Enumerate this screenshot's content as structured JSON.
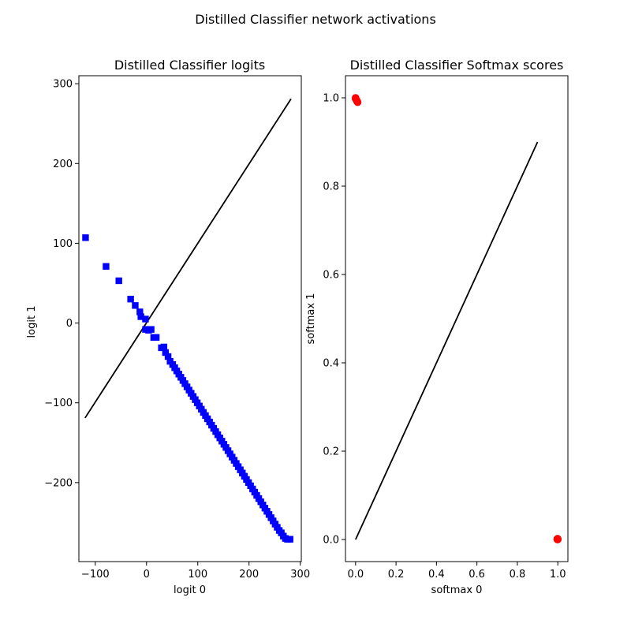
{
  "figure": {
    "suptitle": "Distilled Classifier network activations"
  },
  "chart_data": [
    {
      "type": "scatter",
      "title": "Distilled Classifier logits",
      "xlabel": "logit 0",
      "ylabel": "logit 1",
      "xlim": [
        -132,
        302
      ],
      "ylim": [
        -299,
        310
      ],
      "xticks": [
        -100,
        0,
        100,
        200,
        300
      ],
      "yticks": [
        -200,
        -100,
        0,
        100,
        200,
        300
      ],
      "xtick_labels": [
        "−100",
        "0",
        "100",
        "200",
        "300"
      ],
      "ytick_labels": [
        "−200",
        "−100",
        "0",
        "100",
        "200",
        "300"
      ],
      "reference_line": {
        "x": [
          -120,
          282
        ],
        "y": [
          -119,
          281
        ],
        "color": "#000000"
      },
      "series": [
        {
          "marker": "square",
          "color": "#0000ff",
          "points": [
            [
              -119,
              107
            ],
            [
              -79,
              71
            ],
            [
              -54,
              53
            ],
            [
              -31,
              30
            ],
            [
              -22,
              22
            ],
            [
              -13,
              14
            ],
            [
              -11,
              8
            ],
            [
              -2,
              5
            ],
            [
              -2,
              -8
            ],
            [
              4,
              -9
            ],
            [
              9,
              -8
            ],
            [
              14,
              -18
            ],
            [
              19,
              -18
            ],
            [
              29,
              -31
            ],
            [
              34,
              -30
            ],
            [
              37,
              -37
            ],
            [
              42,
              -42
            ],
            [
              46,
              -48
            ],
            [
              51,
              -52
            ],
            [
              55,
              -56
            ],
            [
              59,
              -60
            ],
            [
              63,
              -64
            ],
            [
              67,
              -68
            ],
            [
              71,
              -72
            ],
            [
              75,
              -76
            ],
            [
              79,
              -80
            ],
            [
              83,
              -84
            ],
            [
              87,
              -88
            ],
            [
              91,
              -92
            ],
            [
              95,
              -96
            ],
            [
              99,
              -100
            ],
            [
              103,
              -104
            ],
            [
              107,
              -108
            ],
            [
              111,
              -112
            ],
            [
              115,
              -116
            ],
            [
              119,
              -120
            ],
            [
              123,
              -124
            ],
            [
              127,
              -128
            ],
            [
              131,
              -132
            ],
            [
              135,
              -136
            ],
            [
              139,
              -140
            ],
            [
              143,
              -144
            ],
            [
              147,
              -148
            ],
            [
              151,
              -152
            ],
            [
              155,
              -156
            ],
            [
              159,
              -160
            ],
            [
              163,
              -164
            ],
            [
              167,
              -168
            ],
            [
              171,
              -172
            ],
            [
              175,
              -176
            ],
            [
              179,
              -180
            ],
            [
              183,
              -184
            ],
            [
              187,
              -188
            ],
            [
              191,
              -192
            ],
            [
              195,
              -196
            ],
            [
              199,
              -200
            ],
            [
              203,
              -204
            ],
            [
              207,
              -208
            ],
            [
              211,
              -212
            ],
            [
              215,
              -216
            ],
            [
              219,
              -220
            ],
            [
              223,
              -224
            ],
            [
              227,
              -228
            ],
            [
              231,
              -232
            ],
            [
              235,
              -236
            ],
            [
              239,
              -240
            ],
            [
              243,
              -244
            ],
            [
              247,
              -248
            ],
            [
              251,
              -252
            ],
            [
              255,
              -256
            ],
            [
              259,
              -260
            ],
            [
              263,
              -263
            ],
            [
              267,
              -267
            ],
            [
              271,
              -270
            ],
            [
              275,
              -271
            ],
            [
              280,
              -271
            ]
          ]
        }
      ]
    },
    {
      "type": "scatter",
      "title": "Distilled Classifier Softmax scores",
      "xlabel": "softmax 0",
      "ylabel": "softmax 1",
      "xlim": [
        -0.05,
        1.05
      ],
      "ylim": [
        -0.05,
        1.05
      ],
      "xticks": [
        0.0,
        0.2,
        0.4,
        0.6,
        0.8,
        1.0
      ],
      "yticks": [
        0.0,
        0.2,
        0.4,
        0.6,
        0.8,
        1.0
      ],
      "xtick_labels": [
        "0.0",
        "0.2",
        "0.4",
        "0.6",
        "0.8",
        "1.0"
      ],
      "ytick_labels": [
        "0.0",
        "0.2",
        "0.4",
        "0.6",
        "0.8",
        "1.0"
      ],
      "reference_line": {
        "x": [
          0.0,
          0.9
        ],
        "y": [
          0.0,
          0.9
        ],
        "color": "#000000"
      },
      "series": [
        {
          "marker": "circle",
          "color": "#ff0000",
          "points": [
            [
              0.0,
              1.0
            ],
            [
              0.0,
              0.998
            ],
            [
              0.002,
              0.997
            ],
            [
              0.004,
              0.995
            ],
            [
              0.006,
              0.993
            ],
            [
              0.008,
              0.992
            ],
            [
              0.01,
              0.99
            ],
            [
              1.0,
              0.0
            ],
            [
              0.998,
              0.0
            ],
            [
              0.999,
              0.002
            ],
            [
              1.0,
              0.001
            ],
            [
              0.997,
              0.001
            ]
          ]
        }
      ]
    }
  ]
}
